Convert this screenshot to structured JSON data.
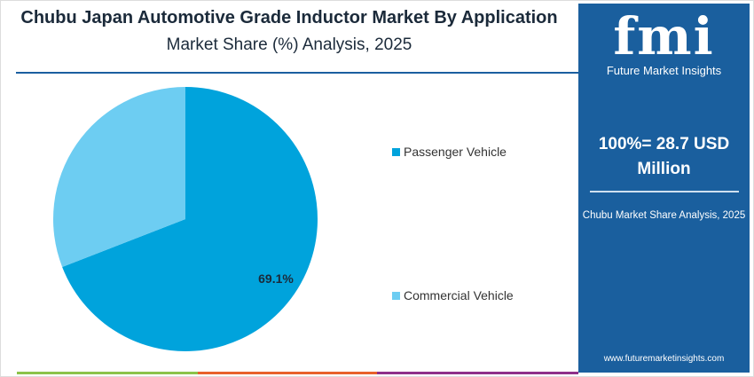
{
  "header": {
    "title": "Chubu Japan Automotive Grade Inductor Market By Application",
    "subtitle": "Market Share (%) Analysis, 2025"
  },
  "panel": {
    "logo_text": "fmi",
    "logo_name": "Future Market Insights",
    "total": "100%= 28.7 USD Million",
    "caption": "Chubu Market Share Analysis, 2025",
    "url": "www.futuremarketinsights.com",
    "color": "#1a5f9e"
  },
  "chart_data": {
    "type": "pie",
    "title": "Chubu Japan Automotive Grade Inductor Market By Application",
    "subtitle": "Market Share (%) Analysis, 2025",
    "legend_placement": "right",
    "slices": [
      {
        "name": "Passenger Vehicle",
        "value": 69.1,
        "label": "69.1%",
        "color": "#00a3dc"
      },
      {
        "name": "Commercial Vehicle",
        "value": 30.9,
        "label": "",
        "color": "#6dcdf2"
      }
    ]
  },
  "footer_bar_colors": [
    "#8bc34a",
    "#e8612c",
    "#8e2f8a"
  ]
}
